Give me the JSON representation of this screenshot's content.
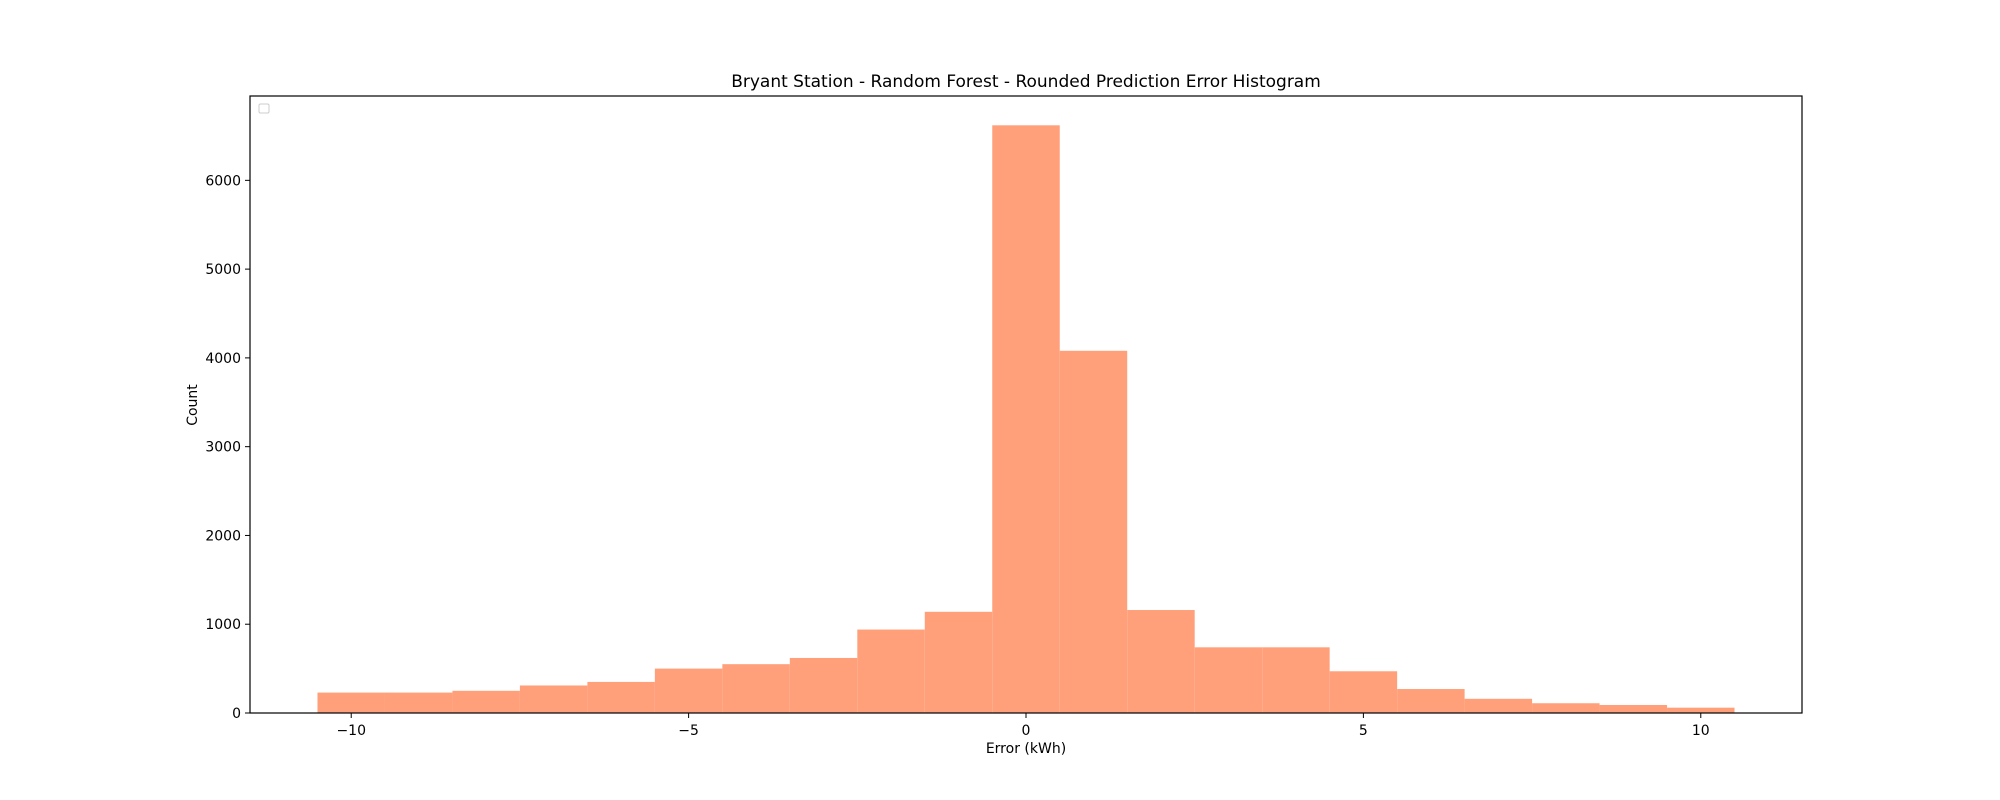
{
  "chart_data": {
    "type": "bar",
    "subtype": "histogram",
    "title": "Bryant Station - Random Forest - Rounded Prediction Error Histogram",
    "xlabel": "Error (kWh)",
    "ylabel": "Count",
    "xlim": [
      -11.5,
      11.5
    ],
    "ylim": [
      0,
      6950
    ],
    "xticks": [
      -10,
      -5,
      0,
      5,
      10
    ],
    "xtick_labels": [
      "−10",
      "−5",
      "0",
      "5",
      "10"
    ],
    "yticks": [
      0,
      1000,
      2000,
      3000,
      4000,
      5000,
      6000
    ],
    "ytick_labels": [
      "0",
      "1000",
      "2000",
      "3000",
      "4000",
      "5000",
      "6000"
    ],
    "bar_color": "#ffa07a",
    "grid": false,
    "legend": "top-left (empty)",
    "bins": [
      {
        "x0": -10.5,
        "x1": -9.5,
        "count": 230
      },
      {
        "x0": -9.5,
        "x1": -8.5,
        "count": 230
      },
      {
        "x0": -8.5,
        "x1": -7.5,
        "count": 250
      },
      {
        "x0": -7.5,
        "x1": -6.5,
        "count": 310
      },
      {
        "x0": -6.5,
        "x1": -5.5,
        "count": 350
      },
      {
        "x0": -5.5,
        "x1": -4.5,
        "count": 500
      },
      {
        "x0": -4.5,
        "x1": -3.5,
        "count": 550
      },
      {
        "x0": -3.5,
        "x1": -2.5,
        "count": 620
      },
      {
        "x0": -2.5,
        "x1": -1.5,
        "count": 940
      },
      {
        "x0": -1.5,
        "x1": -0.5,
        "count": 1140
      },
      {
        "x0": -0.5,
        "x1": 0.5,
        "count": 6620
      },
      {
        "x0": 0.5,
        "x1": 1.5,
        "count": 4080
      },
      {
        "x0": 1.5,
        "x1": 2.5,
        "count": 1160
      },
      {
        "x0": 2.5,
        "x1": 3.5,
        "count": 740
      },
      {
        "x0": 3.5,
        "x1": 4.5,
        "count": 740
      },
      {
        "x0": 4.5,
        "x1": 5.5,
        "count": 470
      },
      {
        "x0": 5.5,
        "x1": 6.5,
        "count": 270
      },
      {
        "x0": 6.5,
        "x1": 7.5,
        "count": 160
      },
      {
        "x0": 7.5,
        "x1": 8.5,
        "count": 110
      },
      {
        "x0": 8.5,
        "x1": 9.5,
        "count": 90
      },
      {
        "x0": 9.5,
        "x1": 10.5,
        "count": 60
      }
    ]
  }
}
